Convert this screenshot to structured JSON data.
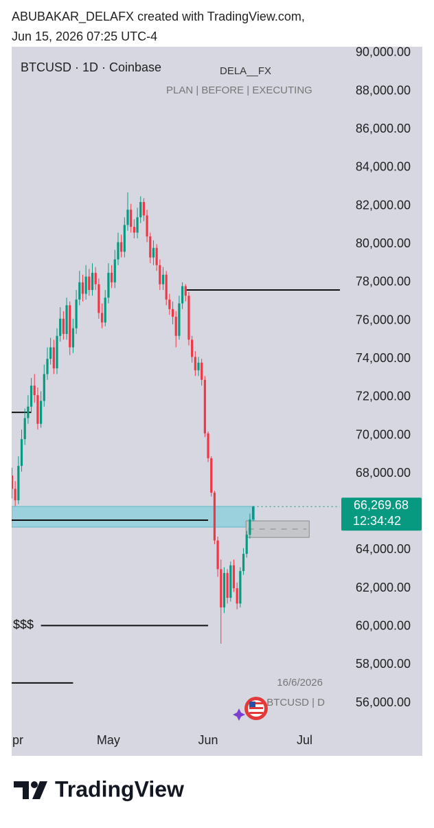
{
  "header": {
    "line1": "ABUBAKAR_DELAFX created with TradingView.com,",
    "line2": "Jun 15, 2026 07:25 UTC-4"
  },
  "chart_data": {
    "type": "candlestick",
    "symbol": "BTCUSD · 1D · Coinbase",
    "indicator": "DELA__FX",
    "indicator_sub": "PLAN  |  BEFORE  |  EXECUTING",
    "up_color": "#089981",
    "down_color": "#f23645",
    "open": [
      67900,
      67200,
      66600,
      68400,
      69800,
      70900,
      71500,
      72600,
      72100,
      70600,
      71800,
      73200,
      74000,
      74600,
      73500,
      75200,
      76100,
      75300,
      76800,
      74600,
      75600,
      77100,
      78000,
      77400,
      78300,
      77600,
      78500,
      77900,
      76400,
      75900,
      77200,
      78500,
      78000,
      79200,
      80100,
      79600,
      81000,
      81800,
      80900,
      80600,
      81400,
      82200,
      81500,
      80400,
      79300,
      79800,
      78900,
      77900,
      78400,
      77100,
      76600,
      76200,
      75200,
      76900,
      77800,
      77300,
      75000,
      74100,
      73400,
      73800,
      72900,
      70100,
      68800,
      67000,
      64500,
      63000,
      61000,
      62800,
      61500,
      63200,
      62000,
      61200,
      62900,
      63800,
      64800,
      65600
    ],
    "high": [
      68300,
      67600,
      68900,
      70300,
      71400,
      72100,
      73000,
      73200,
      72500,
      72300,
      73700,
      74600,
      75100,
      75000,
      75600,
      76700,
      76500,
      77200,
      77000,
      76100,
      77600,
      78600,
      78400,
      78900,
      78700,
      79000,
      78800,
      78200,
      76900,
      77600,
      79000,
      78900,
      79700,
      80600,
      80500,
      81400,
      82700,
      82100,
      81300,
      81900,
      82500,
      82400,
      81800,
      80600,
      80200,
      80000,
      79200,
      78800,
      78600,
      77400,
      77000,
      76500,
      77300,
      78000,
      77900,
      77500,
      75200,
      74400,
      74100,
      74000,
      73100,
      70200,
      68900,
      67100,
      64700,
      63500,
      63100,
      63000,
      63400,
      63500,
      62300,
      63100,
      64100,
      65000,
      65900,
      66300
    ],
    "low": [
      66700,
      66300,
      66400,
      68100,
      69500,
      70600,
      71200,
      71700,
      70300,
      70400,
      71500,
      72900,
      73700,
      73200,
      73200,
      74900,
      75000,
      75000,
      74200,
      74300,
      75300,
      76800,
      77000,
      77100,
      77300,
      77300,
      77600,
      76100,
      75600,
      75700,
      76900,
      77700,
      77700,
      78900,
      79300,
      79300,
      80700,
      80600,
      80300,
      80300,
      81100,
      81200,
      80100,
      79000,
      78900,
      78600,
      77600,
      77600,
      76800,
      76300,
      75800,
      74600,
      75000,
      76600,
      77000,
      74700,
      73800,
      73100,
      73100,
      72600,
      69900,
      68600,
      66800,
      64300,
      62600,
      59100,
      60700,
      61200,
      61300,
      61800,
      60900,
      61000,
      62700,
      63600,
      64600,
      65500
    ],
    "close": [
      67200,
      66600,
      68400,
      69800,
      70900,
      71500,
      72600,
      72100,
      70600,
      71800,
      73200,
      74000,
      74600,
      73500,
      75200,
      76100,
      75300,
      76800,
      74600,
      75600,
      77100,
      78000,
      77400,
      78300,
      77600,
      78500,
      77900,
      76400,
      75900,
      77200,
      78500,
      78000,
      79200,
      80100,
      79600,
      81000,
      81800,
      80900,
      80600,
      81400,
      82200,
      81500,
      80400,
      79300,
      79800,
      78900,
      77900,
      78400,
      77100,
      76600,
      76200,
      75200,
      76900,
      77800,
      77300,
      75000,
      74100,
      73400,
      73800,
      72900,
      70100,
      68800,
      67000,
      64500,
      63000,
      61000,
      62800,
      61500,
      63200,
      62000,
      61200,
      62900,
      63800,
      64800,
      65600,
      66269.68
    ],
    "xlim": [
      -0.1,
      102
    ],
    "xticks": [
      {
        "value": 0,
        "label": "pr"
      },
      {
        "value": 30,
        "label": "May"
      },
      {
        "value": 61,
        "label": "Jun"
      },
      {
        "value": 91,
        "label": "Jul"
      }
    ],
    "ylim": [
      53235,
      90323
    ],
    "yticks": [
      {
        "value": 56000,
        "label": "56,000.00"
      },
      {
        "value": 58000,
        "label": "58,000.00"
      },
      {
        "value": 60000,
        "label": "60,000.00"
      },
      {
        "value": 62000,
        "label": "62,000.00"
      },
      {
        "value": 64000,
        "label": "64,000.00"
      },
      {
        "value": 66000,
        "label": "66,000.00"
      },
      {
        "value": 68000,
        "label": "68,000.00"
      },
      {
        "value": 70000,
        "label": "70,000.00"
      },
      {
        "value": 72000,
        "label": "72,000.00"
      },
      {
        "value": 74000,
        "label": "74,000.00"
      },
      {
        "value": 76000,
        "label": "76,000.00"
      },
      {
        "value": 78000,
        "label": "78,000.00"
      },
      {
        "value": 80000,
        "label": "80,000.00"
      },
      {
        "value": 82000,
        "label": "82,000.00"
      },
      {
        "value": 84000,
        "label": "84,000.00"
      },
      {
        "value": 86000,
        "label": "86,000.00"
      },
      {
        "value": 88000,
        "label": "88,000.00"
      },
      {
        "value": 90000,
        "label": "90,000.00"
      }
    ],
    "last_price": {
      "value": 66269.68,
      "label": "66,269.68"
    },
    "countdown": "12:34:42",
    "price_color": "#089981",
    "zone": {
      "low": 65200,
      "high": 66280,
      "color": "#8fd0dc"
    },
    "box": {
      "low": 64660,
      "high": 65525
    },
    "levels": [
      {
        "value": 77600,
        "from": 54,
        "to": 102
      },
      {
        "value": 71200,
        "from": -0.1,
        "to": 6
      },
      {
        "value": 65560,
        "from": -0.1,
        "to": 61
      },
      {
        "value": 60050,
        "from": 9,
        "to": 61,
        "label": "$$$"
      },
      {
        "value": 57050,
        "from": -0.1,
        "to": 19
      }
    ],
    "date_label": "16/6/2026",
    "watermark": "BTCUSD | D"
  },
  "footer": {
    "brand": "TradingView"
  }
}
